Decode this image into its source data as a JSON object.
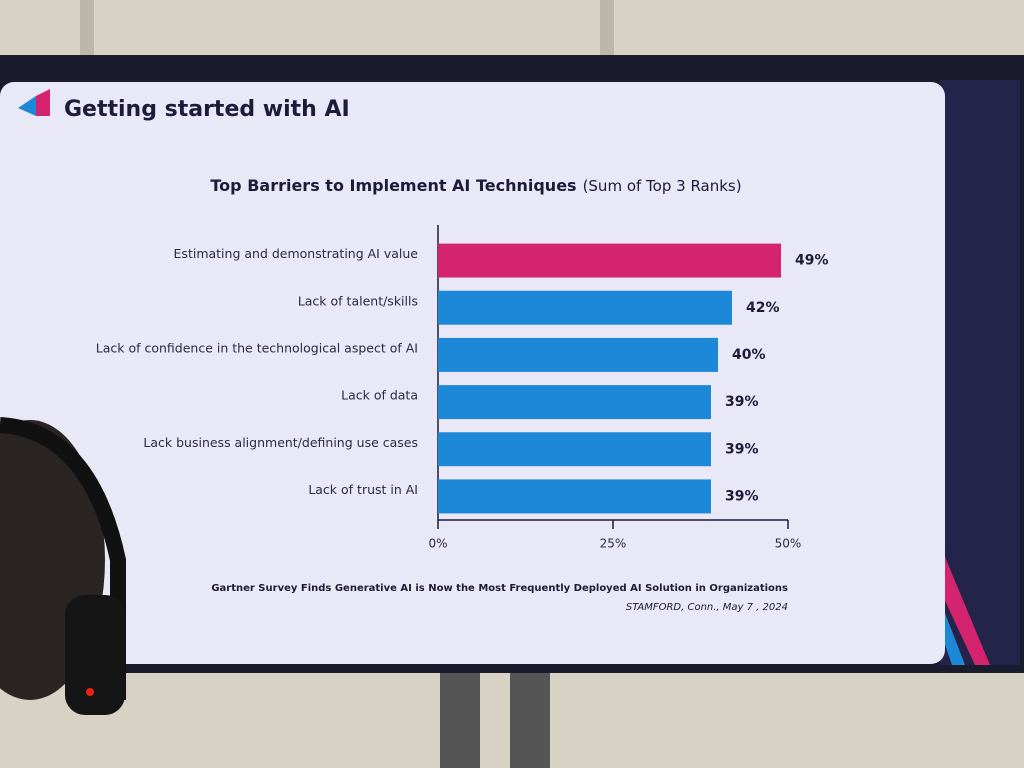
{
  "header": {
    "title": "Getting started with AI"
  },
  "chart_data": {
    "type": "bar",
    "orientation": "horizontal",
    "title": "Top Barriers to Implement AI Techniques",
    "subtitle": "(Sum of Top 3 Ranks)",
    "categories": [
      "Estimating and demonstrating AI value",
      "Lack of talent/skills",
      "Lack of confidence in the technological aspect of AI",
      "Lack of data",
      "Lack business alignment/defining use cases",
      "Lack of trust in AI"
    ],
    "values": [
      49,
      42,
      40,
      39,
      39,
      39
    ],
    "value_labels": [
      "49%",
      "42%",
      "40%",
      "39%",
      "39%",
      "39%"
    ],
    "colors": [
      "#d4246f",
      "#1e88d8",
      "#1e88d8",
      "#1e88d8",
      "#1e88d8",
      "#1e88d8"
    ],
    "xlim": [
      0,
      50
    ],
    "xticks": [
      {
        "value": 0,
        "label": "0%"
      },
      {
        "value": 25,
        "label": "25%"
      },
      {
        "value": 50,
        "label": "50%"
      }
    ],
    "grid": false
  },
  "footer": {
    "source": "Gartner Survey Finds Generative AI is Now the Most Frequently Deployed AI Solution in Organizations",
    "dateline": "STAMFORD, Conn., May 7 , 2024"
  }
}
